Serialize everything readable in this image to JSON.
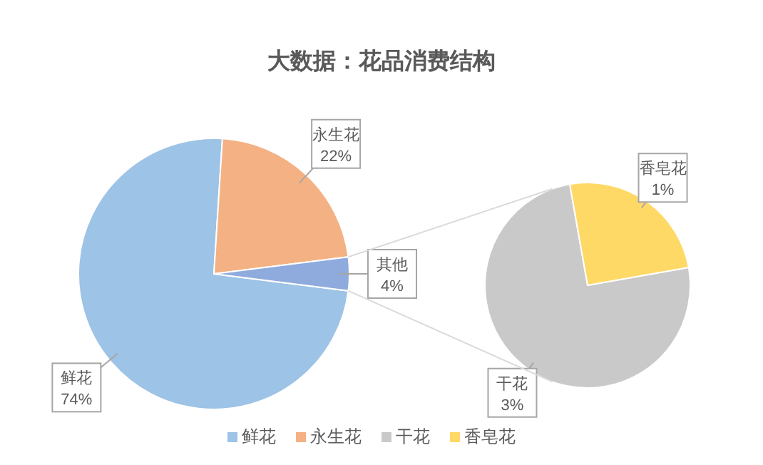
{
  "chart_data": [
    {
      "type": "pie",
      "title": "大数据：花品消费结构",
      "categories": [
        "鲜花",
        "永生花",
        "其他"
      ],
      "values": [
        74,
        22,
        4
      ],
      "colors": [
        "#9dc3e6",
        "#f4b183",
        "#8faadc"
      ],
      "value_labels": [
        "74%",
        "22%",
        "4%"
      ],
      "legend": "bottom"
    },
    {
      "type": "pie",
      "categories": [
        "干花",
        "香皂花"
      ],
      "values": [
        3,
        1
      ],
      "colors": [
        "#c9c9c9",
        "#ffd966"
      ],
      "value_labels": [
        "3%",
        "1%"
      ],
      "legend": "bottom"
    }
  ]
}
